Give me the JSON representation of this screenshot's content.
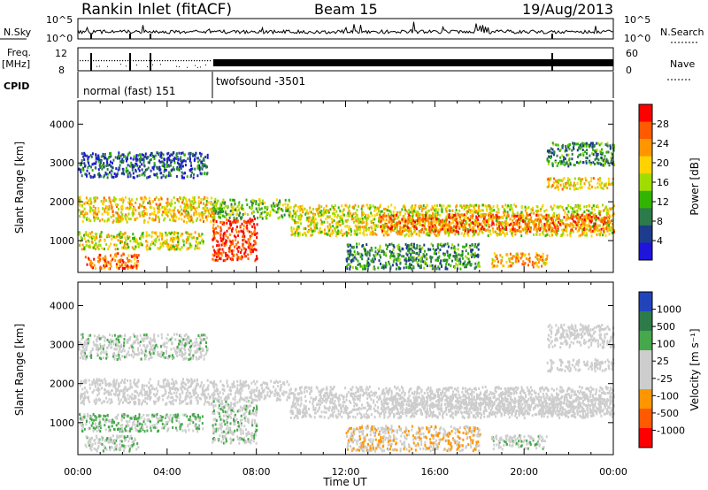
{
  "header": {
    "station": "Rankin Inlet (fitACF)",
    "beam": "Beam 15",
    "date": "19/Aug/2013"
  },
  "noise_panel": {
    "left_label": "N.Sky",
    "right_label": "N.Search",
    "left_ticks": [
      "10^5",
      "10^0"
    ],
    "right_ticks": [
      "10^5",
      "10^0"
    ]
  },
  "freq_panel": {
    "left_label_1": "Freq.",
    "left_label_2": "[MHz]",
    "right_label": "Nave",
    "left_ticks": [
      "12",
      "8"
    ],
    "right_ticks": [
      "60",
      "0"
    ]
  },
  "cpid_panel": {
    "label": "CPID",
    "modes": [
      {
        "name": "normal (fast) 151",
        "start_h": 0,
        "end_h": 6.1
      },
      {
        "name": "twofsound -3501",
        "start_h": 6.1,
        "end_h": 24
      }
    ]
  },
  "power_panel": {
    "ylabel": "Slant Range [km]",
    "colorbar_label": "Power [dB]",
    "colorbar_ticks": [
      "28",
      "24",
      "20",
      "16",
      "12",
      "8",
      "4"
    ],
    "colorbar_colors": [
      "#ff0000",
      "#ff5a00",
      "#ff9600",
      "#ffd200",
      "#a0dc00",
      "#32b400",
      "#2d7b4a",
      "#1e3c8c",
      "#1e14dc"
    ]
  },
  "velocity_panel": {
    "ylabel": "Slant Range [km]",
    "colorbar_label": "Velocity [m s⁻¹]",
    "colorbar_ticks": [
      "1000",
      "500",
      "100",
      "25",
      "-25",
      "-100",
      "-500",
      "-1000"
    ],
    "colorbar_colors": [
      "#2244bb",
      "#2d7b4a",
      "#45a84a",
      "#cdcdcd",
      "#cdcdcd",
      "#ff9600",
      "#ff5a00",
      "#ff0000"
    ]
  },
  "xaxis": {
    "label": "Time UT",
    "ticks": [
      "00:00",
      "04:00",
      "08:00",
      "12:00",
      "16:00",
      "20:00",
      "00:00"
    ]
  },
  "yaxis_ticks": [
    "4000",
    "3000",
    "2000",
    "1000"
  ],
  "chart_data": {
    "type": "heatmap",
    "title": "Rankin Inlet (fitACF)",
    "subtitle": "Beam 15",
    "date": "19/Aug/2013",
    "xlabel": "Time UT",
    "ylabel": "Slant Range [km]",
    "xlim": [
      0,
      24
    ],
    "ylim": [
      180,
      4600
    ],
    "x_ticks": [
      "00:00",
      "04:00",
      "08:00",
      "12:00",
      "16:00",
      "20:00",
      "00:00"
    ],
    "y_ticks": [
      1000,
      2000,
      3000,
      4000
    ],
    "panels": [
      {
        "name": "Power [dB]",
        "scale": [
          0,
          32
        ],
        "bands": [
          {
            "t0": 0.0,
            "t1": 6.1,
            "r0": 1500,
            "r1": 2150,
            "value": 20
          },
          {
            "t0": 0.0,
            "t1": 5.6,
            "r0": 800,
            "r1": 1250,
            "value": 18
          },
          {
            "t0": 0.3,
            "t1": 2.7,
            "r0": 300,
            "r1": 700,
            "value": 26
          },
          {
            "t0": 0.0,
            "t1": 5.8,
            "r0": 2650,
            "r1": 3300,
            "value": 6
          },
          {
            "t0": 6.0,
            "t1": 8.0,
            "r0": 500,
            "r1": 1600,
            "value": 28
          },
          {
            "t0": 6.0,
            "t1": 9.5,
            "r0": 1600,
            "r1": 2100,
            "value": 14
          },
          {
            "t0": 9.5,
            "t1": 24.0,
            "r0": 1150,
            "r1": 1950,
            "value": 18
          },
          {
            "t0": 13.5,
            "t1": 24.0,
            "r0": 1250,
            "r1": 1700,
            "value": 26
          },
          {
            "t0": 12.0,
            "t1": 18.0,
            "r0": 300,
            "r1": 950,
            "value": 10
          },
          {
            "t0": 18.5,
            "t1": 21.0,
            "r0": 350,
            "r1": 700,
            "value": 22
          },
          {
            "t0": 21.0,
            "t1": 24.0,
            "r0": 2950,
            "r1": 3550,
            "value": 10
          },
          {
            "t0": 21.0,
            "t1": 24.0,
            "r0": 2350,
            "r1": 2650,
            "value": 20
          }
        ]
      },
      {
        "name": "Velocity [m s⁻¹]",
        "scale": [
          -1000,
          1000
        ],
        "bands": [
          {
            "t0": 0.0,
            "t1": 6.1,
            "r0": 1500,
            "r1": 2150,
            "value": 0
          },
          {
            "t0": 0.0,
            "t1": 5.6,
            "r0": 800,
            "r1": 1250,
            "value": 250
          },
          {
            "t0": 0.3,
            "t1": 2.7,
            "r0": 300,
            "r1": 700,
            "value": 150
          },
          {
            "t0": 0.0,
            "t1": 5.8,
            "r0": 2650,
            "r1": 3300,
            "value": 120
          },
          {
            "t0": 6.0,
            "t1": 8.0,
            "r0": 500,
            "r1": 1600,
            "value": 150
          },
          {
            "t0": 6.0,
            "t1": 9.5,
            "r0": 1600,
            "r1": 2100,
            "value": 0
          },
          {
            "t0": 9.5,
            "t1": 24.0,
            "r0": 1150,
            "r1": 1950,
            "value": 0
          },
          {
            "t0": 13.5,
            "t1": 24.0,
            "r0": 1250,
            "r1": 1700,
            "value": 0
          },
          {
            "t0": 12.0,
            "t1": 18.0,
            "r0": 300,
            "r1": 950,
            "value": -200
          },
          {
            "t0": 18.5,
            "t1": 21.0,
            "r0": 350,
            "r1": 700,
            "value": 120
          },
          {
            "t0": 21.0,
            "t1": 24.0,
            "r0": 2950,
            "r1": 3550,
            "value": 0
          },
          {
            "t0": 21.0,
            "t1": 24.0,
            "r0": 2350,
            "r1": 2650,
            "value": 0
          }
        ]
      }
    ]
  }
}
